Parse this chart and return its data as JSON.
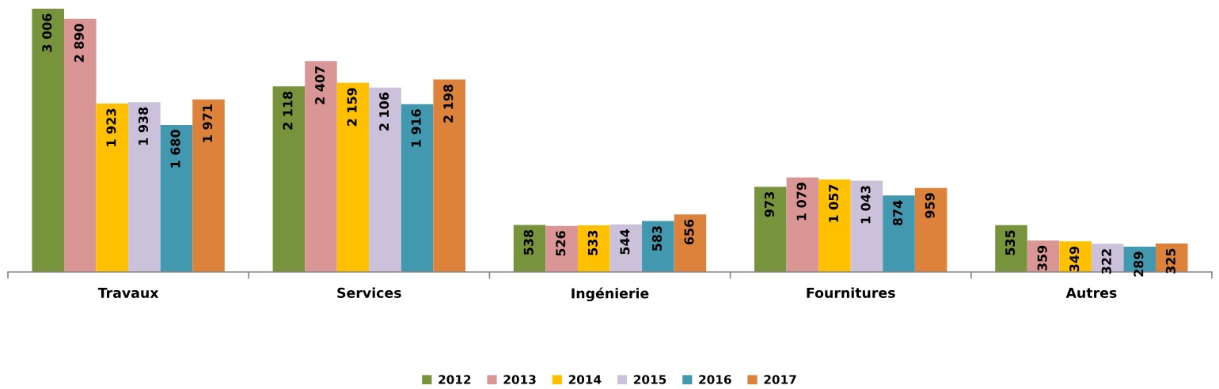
{
  "chart_data": {
    "type": "bar",
    "categories": [
      "Travaux",
      "Services",
      "Ingénierie",
      "Fournitures",
      "Autres"
    ],
    "series": [
      {
        "name": "2012",
        "color": "#77933c",
        "values": [
          3006,
          2118,
          538,
          973,
          535
        ],
        "value_labels": [
          "3 006",
          "2 118",
          "538",
          "973",
          "535"
        ]
      },
      {
        "name": "2013",
        "color": "#d99694",
        "values": [
          2890,
          2407,
          526,
          1079,
          359
        ],
        "value_labels": [
          "2 890",
          "2 407",
          "526",
          "1 079",
          "359"
        ]
      },
      {
        "name": "2014",
        "color": "#ffc000",
        "values": [
          1923,
          2159,
          533,
          1057,
          349
        ],
        "value_labels": [
          "1 923",
          "2 159",
          "533",
          "1 057",
          "349"
        ]
      },
      {
        "name": "2015",
        "color": "#ccc1da",
        "values": [
          1938,
          2106,
          544,
          1043,
          322
        ],
        "value_labels": [
          "1 938",
          "2 106",
          "544",
          "1 043",
          "322"
        ]
      },
      {
        "name": "2016",
        "color": "#4198af",
        "values": [
          1680,
          1916,
          583,
          874,
          289
        ],
        "value_labels": [
          "1 680",
          "1 916",
          "583",
          "874",
          "289"
        ]
      },
      {
        "name": "2017",
        "color": "#dd823b",
        "values": [
          1971,
          2198,
          656,
          959,
          325
        ],
        "value_labels": [
          "1 971",
          "2 198",
          "656",
          "959",
          "325"
        ]
      }
    ],
    "legend": "bottom",
    "tick_labels": "x"
  }
}
